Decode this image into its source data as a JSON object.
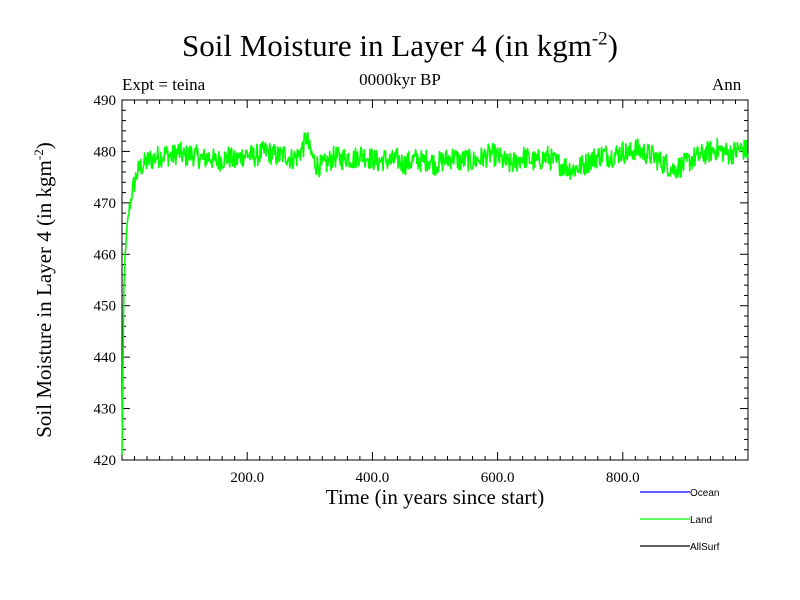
{
  "chart_data": {
    "type": "line",
    "title": "Soil Moisture in Layer 4 (in kgm",
    "title_sup": "-2",
    "title_suffix": ")",
    "subtitle_left": "Expt = teina",
    "subtitle_center": "0000kyr BP",
    "subtitle_right": "Ann",
    "xlabel": "Time (in years since start)",
    "ylabel": "Soil Moisture in Layer 4 (in kgm",
    "ylabel_sup": "-2",
    "ylabel_suffix": ")",
    "xlim": [
      0,
      1000
    ],
    "ylim": [
      420,
      490
    ],
    "xticks_major": [
      200,
      400,
      600,
      800
    ],
    "xtick_labels": [
      "200.0",
      "400.0",
      "600.0",
      "800.0"
    ],
    "yticks_major": [
      420,
      430,
      440,
      450,
      460,
      470,
      480,
      490
    ],
    "ytick_labels": [
      "420",
      "430",
      "440",
      "450",
      "460",
      "470",
      "480",
      "490"
    ],
    "legend": [
      {
        "name": "Ocean",
        "color": "#0000ff"
      },
      {
        "name": "Land",
        "color": "#00ff00"
      },
      {
        "name": "AllSurf",
        "color": "#000000"
      }
    ],
    "series": [
      {
        "name": "Land",
        "color": "#00ff00",
        "x": [
          0,
          1,
          2,
          3,
          5,
          8,
          12,
          16,
          20,
          25,
          30,
          35,
          40,
          45,
          50,
          55,
          60,
          70,
          80,
          90,
          100,
          110,
          120,
          130,
          140,
          150,
          160,
          170,
          180,
          190,
          200,
          210,
          220,
          230,
          240,
          250,
          260,
          270,
          280,
          290,
          295,
          300,
          310,
          320,
          330,
          340,
          350,
          360,
          370,
          380,
          390,
          400,
          410,
          420,
          430,
          440,
          450,
          460,
          470,
          480,
          490,
          500,
          510,
          520,
          530,
          540,
          550,
          560,
          570,
          580,
          590,
          600,
          610,
          620,
          630,
          640,
          650,
          660,
          670,
          680,
          690,
          700,
          710,
          720,
          730,
          740,
          750,
          760,
          770,
          780,
          790,
          800,
          810,
          820,
          830,
          840,
          850,
          860,
          870,
          880,
          890,
          900,
          910,
          920,
          930,
          940,
          950,
          960,
          970,
          980,
          990,
          1000
        ],
        "values": [
          421,
          432,
          445,
          453,
          460,
          465,
          469,
          472,
          474,
          476,
          477,
          477.5,
          478,
          478.5,
          478.5,
          479,
          479,
          479.5,
          479,
          480,
          479,
          479.5,
          479,
          478.5,
          479,
          478,
          478.5,
          479,
          478,
          479,
          479.5,
          479,
          479.5,
          480,
          479.5,
          479,
          479.5,
          478.5,
          479,
          481,
          483,
          480,
          477.5,
          477,
          478,
          479,
          478.5,
          479,
          478.5,
          479.5,
          479,
          478.5,
          478,
          478.5,
          478,
          478.5,
          477.5,
          478,
          478.5,
          478,
          478.5,
          477.5,
          478,
          478.5,
          479,
          478,
          478.5,
          478,
          478.5,
          479,
          479.5,
          479,
          478,
          477.5,
          478,
          479,
          478.5,
          478,
          478.5,
          479,
          478,
          477.5,
          477,
          476.5,
          477,
          477.5,
          478.5,
          479,
          479.5,
          479,
          479.5,
          480,
          479.5,
          480.5,
          480,
          479.5,
          479,
          478,
          477.5,
          476.5,
          477,
          477.5,
          478.5,
          479,
          479.5,
          480,
          480.5,
          480,
          479.5,
          480,
          480.5,
          480
        ],
        "fluctuation_amplitude": 2.2
      }
    ]
  }
}
